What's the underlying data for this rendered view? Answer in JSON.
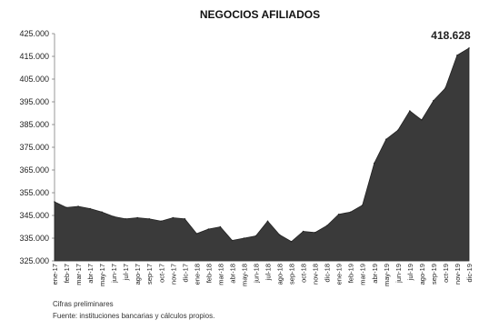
{
  "chart_data": {
    "type": "area",
    "title": "NEGOCIOS AFILIADOS",
    "xlabel": "",
    "ylabel": "",
    "ylim": [
      325000,
      425000
    ],
    "yticks": [
      "425.000",
      "415.000",
      "405.000",
      "395.000",
      "385.000",
      "375.000",
      "365.000",
      "355.000",
      "345.000",
      "335.000",
      "325.000"
    ],
    "ytick_values": [
      425000,
      415000,
      405000,
      395000,
      385000,
      375000,
      365000,
      355000,
      345000,
      335000,
      325000
    ],
    "categories": [
      "ene-17",
      "feb-17",
      "mar-17",
      "abr-17",
      "may-17",
      "jun-17",
      "jul-17",
      "ago-17",
      "sep-17",
      "oct-17",
      "nov-17",
      "dic-17",
      "ene-18",
      "feb-18",
      "mar-18",
      "abr-18",
      "may-18",
      "jun-18",
      "jul-18",
      "ago-18",
      "sep-18",
      "oct-18",
      "nov-18",
      "dic-18",
      "ene-19",
      "feb-19",
      "mar-19",
      "abr-19",
      "may-19",
      "jun-19",
      "jul-19",
      "ago-19",
      "sep-19",
      "oct-19",
      "nov-19",
      "dic-19"
    ],
    "values": [
      351000,
      348500,
      349000,
      348000,
      346500,
      344500,
      343500,
      344000,
      343500,
      342500,
      344000,
      343500,
      337000,
      339000,
      340000,
      334000,
      335000,
      336000,
      342500,
      336500,
      333500,
      338000,
      337500,
      340500,
      345500,
      346500,
      349500,
      368000,
      378500,
      382500,
      391000,
      387000,
      395500,
      401000,
      415500,
      418628
    ],
    "last_label": "418.628",
    "grid": false,
    "legend": "none",
    "fill_color": "#3a3a3a"
  },
  "notes": {
    "line1": "Cifras preliminares",
    "line2": "Fuente: instituciones bancarias y cálculos propios."
  }
}
